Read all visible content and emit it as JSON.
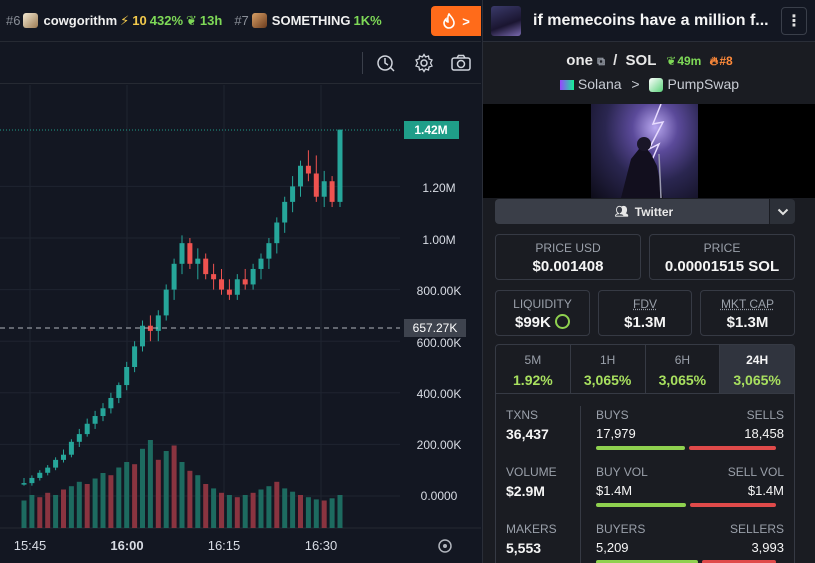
{
  "ticker": {
    "items": [
      {
        "rank": "#6",
        "name": "cowgorithm",
        "boost": "10",
        "change": "432%",
        "age": "13h"
      },
      {
        "rank": "#7",
        "name": "SOMETHING",
        "change": "1K%"
      }
    ],
    "button_icon": "fire-icon",
    "button_chevron": ">"
  },
  "panel": {
    "title": "if memecoins have a million f...",
    "menu_icon": "⋮",
    "pair": {
      "base": "one",
      "quote": "SOL",
      "age": "49m",
      "rank": "#8"
    },
    "chain": {
      "name": "Solana",
      "dex": "PumpSwap",
      "sep": ">"
    },
    "social": {
      "label": "Twitter"
    },
    "price_usd": {
      "label": "PRICE USD",
      "value": "$0.001408"
    },
    "price_native": {
      "label": "PRICE",
      "value": "0.00001515 SOL"
    },
    "liquidity": {
      "label": "LIQUIDITY",
      "value": "$99K"
    },
    "fdv": {
      "label": "FDV",
      "value": "$1.3M"
    },
    "mkt_cap": {
      "label": "MKT CAP",
      "value": "$1.3M"
    },
    "timeframes": [
      {
        "label": "5M",
        "value": "1.92%"
      },
      {
        "label": "1H",
        "value": "3,065%"
      },
      {
        "label": "6H",
        "value": "3,065%"
      },
      {
        "label": "24H",
        "value": "3,065%"
      }
    ],
    "stats": {
      "txns": {
        "label": "TXNS",
        "value": "36,437"
      },
      "buys": {
        "label": "BUYS",
        "value": "17,979"
      },
      "sells": {
        "label": "SELLS",
        "value": "18,458"
      },
      "volume": {
        "label": "VOLUME",
        "value": "$2.9M"
      },
      "buy_vol": {
        "label": "BUY VOL",
        "value": "$1.4M"
      },
      "sell_vol": {
        "label": "SELL VOL",
        "value": "$1.4M"
      },
      "makers": {
        "label": "MAKERS",
        "value": "5,553"
      },
      "buyers": {
        "label": "BUYERS",
        "value": "5,209"
      },
      "sellers": {
        "label": "SELLERS",
        "value": "3,993"
      }
    },
    "ratios": {
      "buys": 0.493,
      "buy_vol": 0.5,
      "buyers": 0.566
    }
  },
  "chart_data": {
    "type": "candlestick",
    "y_ticks": [
      "1.20M",
      "1.00M",
      "800.00K",
      "600.00K",
      "400.00K",
      "200.00K",
      "0.0000"
    ],
    "x_ticks": [
      "15:45",
      "16:00",
      "16:15",
      "16:30"
    ],
    "last_price_label": "1.42M",
    "crosshair_label": "657.27K",
    "colors": {
      "up": "#26a69a",
      "down": "#ef5350",
      "last_tag": "#1f9e89"
    },
    "candles": [
      [
        0.05,
        0.07,
        0.04,
        0.05
      ],
      [
        0.05,
        0.08,
        0.04,
        0.07
      ],
      [
        0.07,
        0.1,
        0.06,
        0.09
      ],
      [
        0.09,
        0.12,
        0.08,
        0.11
      ],
      [
        0.11,
        0.15,
        0.1,
        0.14
      ],
      [
        0.14,
        0.18,
        0.13,
        0.16
      ],
      [
        0.16,
        0.22,
        0.15,
        0.21
      ],
      [
        0.21,
        0.26,
        0.19,
        0.24
      ],
      [
        0.24,
        0.3,
        0.23,
        0.28
      ],
      [
        0.28,
        0.33,
        0.26,
        0.31
      ],
      [
        0.31,
        0.36,
        0.29,
        0.34
      ],
      [
        0.34,
        0.4,
        0.32,
        0.38
      ],
      [
        0.38,
        0.44,
        0.36,
        0.43
      ],
      [
        0.43,
        0.52,
        0.41,
        0.5
      ],
      [
        0.5,
        0.6,
        0.48,
        0.58
      ],
      [
        0.58,
        0.68,
        0.56,
        0.66
      ],
      [
        0.66,
        0.7,
        0.6,
        0.64
      ],
      [
        0.64,
        0.72,
        0.6,
        0.7
      ],
      [
        0.7,
        0.82,
        0.68,
        0.8
      ],
      [
        0.8,
        0.92,
        0.76,
        0.9
      ],
      [
        0.9,
        1.01,
        0.86,
        0.98
      ],
      [
        0.98,
        1.0,
        0.88,
        0.9
      ],
      [
        0.9,
        0.96,
        0.84,
        0.92
      ],
      [
        0.92,
        0.94,
        0.84,
        0.86
      ],
      [
        0.86,
        0.9,
        0.8,
        0.84
      ],
      [
        0.84,
        0.88,
        0.78,
        0.8
      ],
      [
        0.8,
        0.84,
        0.76,
        0.78
      ],
      [
        0.78,
        0.86,
        0.76,
        0.84
      ],
      [
        0.84,
        0.88,
        0.8,
        0.82
      ],
      [
        0.82,
        0.9,
        0.8,
        0.88
      ],
      [
        0.88,
        0.94,
        0.84,
        0.92
      ],
      [
        0.92,
        1.0,
        0.88,
        0.98
      ],
      [
        0.98,
        1.08,
        0.94,
        1.06
      ],
      [
        1.06,
        1.16,
        1.02,
        1.14
      ],
      [
        1.14,
        1.24,
        1.1,
        1.2
      ],
      [
        1.2,
        1.3,
        1.16,
        1.28
      ],
      [
        1.28,
        1.34,
        1.22,
        1.25
      ],
      [
        1.25,
        1.32,
        1.14,
        1.16
      ],
      [
        1.16,
        1.26,
        1.12,
        1.22
      ],
      [
        1.22,
        1.24,
        1.12,
        1.14
      ],
      [
        1.14,
        1.42,
        1.12,
        1.42
      ]
    ],
    "volumes": [
      [
        0.25,
        1
      ],
      [
        0.3,
        1
      ],
      [
        0.28,
        0
      ],
      [
        0.32,
        0
      ],
      [
        0.3,
        1
      ],
      [
        0.35,
        0
      ],
      [
        0.38,
        1
      ],
      [
        0.42,
        1
      ],
      [
        0.4,
        0
      ],
      [
        0.45,
        1
      ],
      [
        0.5,
        1
      ],
      [
        0.48,
        0
      ],
      [
        0.55,
        1
      ],
      [
        0.6,
        1
      ],
      [
        0.58,
        0
      ],
      [
        0.72,
        1
      ],
      [
        0.8,
        1
      ],
      [
        0.62,
        0
      ],
      [
        0.7,
        1
      ],
      [
        0.75,
        0
      ],
      [
        0.6,
        1
      ],
      [
        0.52,
        0
      ],
      [
        0.48,
        1
      ],
      [
        0.4,
        0
      ],
      [
        0.36,
        1
      ],
      [
        0.32,
        0
      ],
      [
        0.3,
        1
      ],
      [
        0.28,
        0
      ],
      [
        0.3,
        1
      ],
      [
        0.32,
        0
      ],
      [
        0.35,
        1
      ],
      [
        0.38,
        1
      ],
      [
        0.42,
        0
      ],
      [
        0.36,
        1
      ],
      [
        0.33,
        1
      ],
      [
        0.3,
        0
      ],
      [
        0.28,
        1
      ],
      [
        0.26,
        1
      ],
      [
        0.25,
        0
      ],
      [
        0.27,
        1
      ],
      [
        0.3,
        1
      ]
    ]
  }
}
